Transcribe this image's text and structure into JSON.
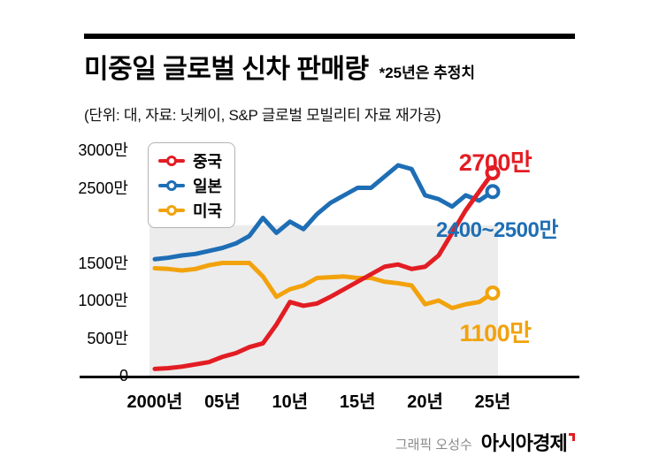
{
  "header": {
    "title": "미중일 글로벌 신차 판매량",
    "title_note": "*25년은 추정치",
    "subtitle": "(단위: 대, 자료: 닛케이, S&P 글로벌 모빌리티 자료 재가공)"
  },
  "legend": {
    "items": [
      {
        "key": "china",
        "label": "중국",
        "color": "#e21d23"
      },
      {
        "key": "japan",
        "label": "일본",
        "color": "#1e6eb5"
      },
      {
        "key": "usa",
        "label": "미국",
        "color": "#f2a20d"
      }
    ]
  },
  "annotations": [
    {
      "key": "china",
      "text": "2700만",
      "color": "#e21d23"
    },
    {
      "key": "japan",
      "text": "2400~2500만",
      "color": "#1e6eb5"
    },
    {
      "key": "usa",
      "text": "1100만",
      "color": "#f2a20d"
    }
  ],
  "footer": {
    "credit": "그래픽 오성수",
    "brand": "아시아경제",
    "brand_mark_color": "#e21d23"
  },
  "chart_data": {
    "type": "line",
    "title": "미중일 글로벌 신차 판매량",
    "unit": "만 대",
    "ylim": [
      0,
      3000
    ],
    "grid": false,
    "legend_position": "top-left",
    "x": [
      2000,
      2001,
      2002,
      2003,
      2004,
      2005,
      2006,
      2007,
      2008,
      2009,
      2010,
      2011,
      2012,
      2013,
      2014,
      2015,
      2016,
      2017,
      2018,
      2019,
      2020,
      2021,
      2022,
      2023,
      2024,
      2025
    ],
    "x_tick_labels": [
      {
        "year": 2000,
        "label": "2000년"
      },
      {
        "year": 2005,
        "label": "05년"
      },
      {
        "year": 2010,
        "label": "10년"
      },
      {
        "year": 2015,
        "label": "15년"
      },
      {
        "year": 2020,
        "label": "20년"
      },
      {
        "year": 2025,
        "label": "25년"
      }
    ],
    "y_ticks": [
      {
        "value": 3000,
        "label": "3000만"
      },
      {
        "value": 2500,
        "label": "2500만"
      },
      {
        "value": 1500,
        "label": "1500만"
      },
      {
        "value": 1000,
        "label": "1000만"
      },
      {
        "value": 500,
        "label": "500만"
      },
      {
        "value": 0,
        "label": "0"
      }
    ],
    "plot_band": {
      "y_from": 0,
      "y_to": 2000,
      "color": "#ececec"
    },
    "series": [
      {
        "key": "usa",
        "name": "미국",
        "color": "#f2a20d",
        "values": [
          1430,
          1420,
          1400,
          1420,
          1470,
          1500,
          1500,
          1500,
          1320,
          1050,
          1150,
          1200,
          1300,
          1310,
          1320,
          1300,
          1300,
          1250,
          1230,
          1200,
          950,
          1000,
          900,
          950,
          980,
          1100
        ]
      },
      {
        "key": "japan",
        "name": "일본",
        "color": "#1e6eb5",
        "values": [
          1550,
          1570,
          1600,
          1620,
          1660,
          1700,
          1760,
          1860,
          2100,
          1900,
          2050,
          1950,
          2150,
          2300,
          2400,
          2500,
          2500,
          2650,
          2800,
          2750,
          2400,
          2350,
          2250,
          2400,
          2330,
          2450
        ]
      },
      {
        "key": "china",
        "name": "중국",
        "color": "#e21d23",
        "values": [
          90,
          100,
          120,
          150,
          180,
          250,
          300,
          380,
          430,
          680,
          980,
          930,
          960,
          1050,
          1150,
          1250,
          1350,
          1450,
          1480,
          1420,
          1450,
          1600,
          1900,
          2200,
          2450,
          2700
        ]
      }
    ]
  }
}
